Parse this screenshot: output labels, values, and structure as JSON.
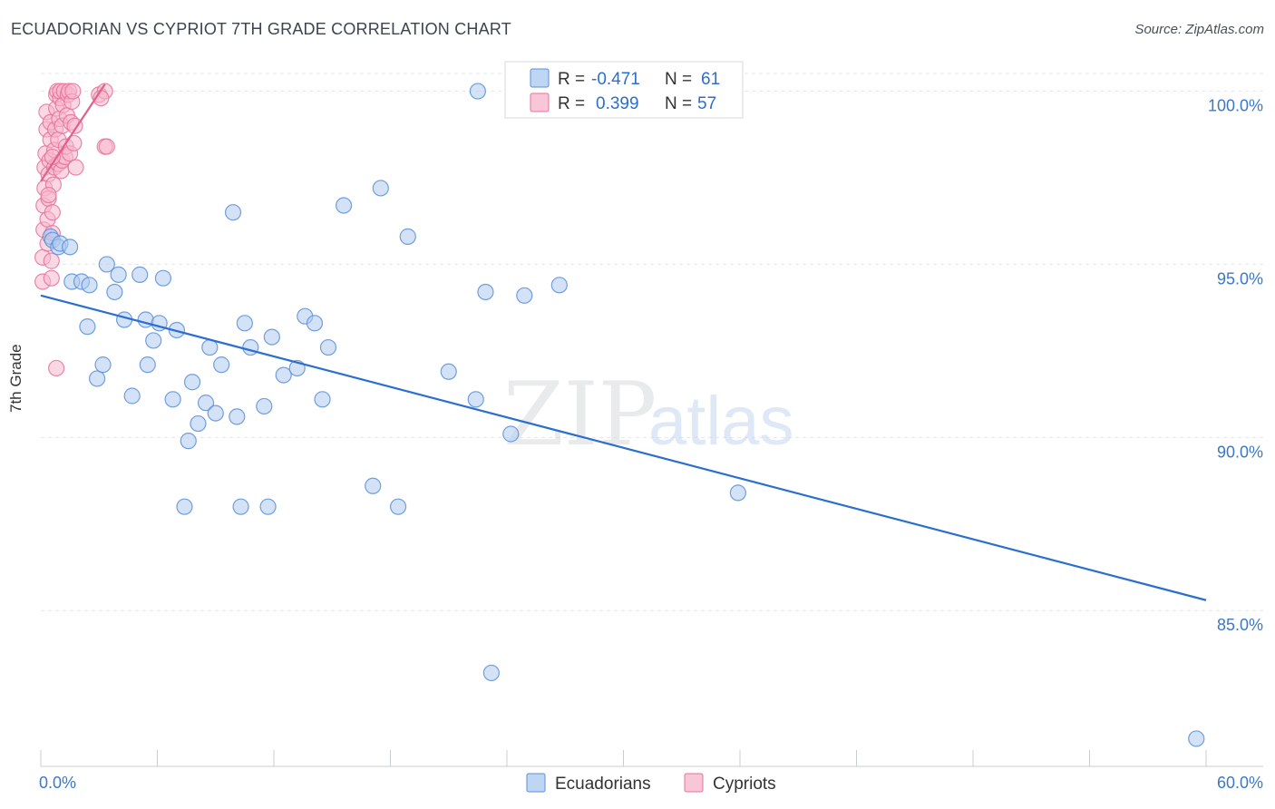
{
  "title": "ECUADORIAN VS CYPRIOT 7TH GRADE CORRELATION CHART",
  "source": "Source: ZipAtlas.com",
  "watermark": {
    "zip": "ZIP",
    "atlas": "atlas"
  },
  "colors": {
    "blue": "#5b8fd8",
    "blue_fill": "#aecbf0",
    "blue_line": "#2a6fcf",
    "pink": "#e8729a",
    "pink_fill": "#f6b8cc",
    "pink_line": "#e0608a",
    "tick_label": "#3b78c8",
    "grid": "#e3e6ea"
  },
  "legend": {
    "items": [
      {
        "r_label": "R =",
        "r_value": "-0.471",
        "n_label": "N =",
        "n_value": "61"
      },
      {
        "r_label": "R =",
        "r_value": "0.399",
        "n_label": "N =",
        "n_value": "57"
      }
    ]
  },
  "chart_data": {
    "type": "scatter",
    "title": "ECUADORIAN VS CYPRIOT 7TH GRADE CORRELATION CHART",
    "xlabel": "",
    "ylabel": "7th Grade",
    "xlim": [
      0,
      60
    ],
    "ylim": [
      80.5,
      100.8
    ],
    "x_tick_labels": [
      "0.0%",
      "60.0%"
    ],
    "y_ticks": [
      85,
      90,
      95,
      100
    ],
    "y_tick_labels": [
      "85.0%",
      "90.0%",
      "95.0%",
      "100.0%"
    ],
    "grid": true,
    "legend_position": "bottom",
    "series": [
      {
        "name": "Ecuadorians",
        "trend": {
          "x": [
            0,
            60
          ],
          "y": [
            94.1,
            85.3
          ]
        },
        "points": [
          [
            0.5,
            95.8
          ],
          [
            0.6,
            95.7
          ],
          [
            0.9,
            95.5
          ],
          [
            1.0,
            95.6
          ],
          [
            1.5,
            95.5
          ],
          [
            1.6,
            94.5
          ],
          [
            2.1,
            94.5
          ],
          [
            2.5,
            94.4
          ],
          [
            2.4,
            93.2
          ],
          [
            2.9,
            91.7
          ],
          [
            3.2,
            92.1
          ],
          [
            3.4,
            95.0
          ],
          [
            3.8,
            94.2
          ],
          [
            4.0,
            94.7
          ],
          [
            4.3,
            93.4
          ],
          [
            4.7,
            91.2
          ],
          [
            5.1,
            94.7
          ],
          [
            5.4,
            93.4
          ],
          [
            5.5,
            92.1
          ],
          [
            5.8,
            92.8
          ],
          [
            6.1,
            93.3
          ],
          [
            6.3,
            94.6
          ],
          [
            6.8,
            91.1
          ],
          [
            7.0,
            93.1
          ],
          [
            7.4,
            88.0
          ],
          [
            7.6,
            89.9
          ],
          [
            7.8,
            91.6
          ],
          [
            8.1,
            90.4
          ],
          [
            8.5,
            91.0
          ],
          [
            8.7,
            92.6
          ],
          [
            9.0,
            90.7
          ],
          [
            9.3,
            92.1
          ],
          [
            9.9,
            96.5
          ],
          [
            10.1,
            90.6
          ],
          [
            10.3,
            88.0
          ],
          [
            10.5,
            93.3
          ],
          [
            10.8,
            92.6
          ],
          [
            11.5,
            90.9
          ],
          [
            11.7,
            88.0
          ],
          [
            11.9,
            92.9
          ],
          [
            12.5,
            91.8
          ],
          [
            13.2,
            92.0
          ],
          [
            13.6,
            93.5
          ],
          [
            14.1,
            93.3
          ],
          [
            14.5,
            91.1
          ],
          [
            14.8,
            92.6
          ],
          [
            15.6,
            96.7
          ],
          [
            17.1,
            88.6
          ],
          [
            17.5,
            97.2
          ],
          [
            18.4,
            88.0
          ],
          [
            18.9,
            95.8
          ],
          [
            21.0,
            91.9
          ],
          [
            22.4,
            91.1
          ],
          [
            22.5,
            100.0
          ],
          [
            22.9,
            94.2
          ],
          [
            23.2,
            83.2
          ],
          [
            24.2,
            90.1
          ],
          [
            24.9,
            94.1
          ],
          [
            26.7,
            94.4
          ],
          [
            35.9,
            88.4
          ],
          [
            59.5,
            81.3
          ]
        ]
      },
      {
        "name": "Cypriots",
        "trend": {
          "x": [
            0,
            3.3
          ],
          "y": [
            97.4,
            100.2
          ]
        },
        "points": [
          [
            0.1,
            94.5
          ],
          [
            0.1,
            95.2
          ],
          [
            0.15,
            96.0
          ],
          [
            0.15,
            96.7
          ],
          [
            0.2,
            97.2
          ],
          [
            0.2,
            97.8
          ],
          [
            0.25,
            98.2
          ],
          [
            0.3,
            98.9
          ],
          [
            0.3,
            99.4
          ],
          [
            0.35,
            95.6
          ],
          [
            0.35,
            96.3
          ],
          [
            0.4,
            96.9
          ],
          [
            0.4,
            97.6
          ],
          [
            0.45,
            98.0
          ],
          [
            0.5,
            98.6
          ],
          [
            0.5,
            99.1
          ],
          [
            0.55,
            94.6
          ],
          [
            0.55,
            95.1
          ],
          [
            0.6,
            95.9
          ],
          [
            0.6,
            96.5
          ],
          [
            0.65,
            97.3
          ],
          [
            0.7,
            97.8
          ],
          [
            0.7,
            98.3
          ],
          [
            0.75,
            98.9
          ],
          [
            0.8,
            99.5
          ],
          [
            0.8,
            99.9
          ],
          [
            0.85,
            100.0
          ],
          [
            0.9,
            97.9
          ],
          [
            0.9,
            98.6
          ],
          [
            0.95,
            99.2
          ],
          [
            1.0,
            99.8
          ],
          [
            1.0,
            100.0
          ],
          [
            1.05,
            97.7
          ],
          [
            1.1,
            98.0
          ],
          [
            1.1,
            99.0
          ],
          [
            1.15,
            99.6
          ],
          [
            1.2,
            100.0
          ],
          [
            1.25,
            98.1
          ],
          [
            1.3,
            98.4
          ],
          [
            1.35,
            99.3
          ],
          [
            1.4,
            99.9
          ],
          [
            1.45,
            100.0
          ],
          [
            1.5,
            98.2
          ],
          [
            1.55,
            99.1
          ],
          [
            1.6,
            99.7
          ],
          [
            1.65,
            100.0
          ],
          [
            1.7,
            98.5
          ],
          [
            1.75,
            99.0
          ],
          [
            1.8,
            97.8
          ],
          [
            0.6,
            98.1
          ],
          [
            0.8,
            92.0
          ],
          [
            0.4,
            97.0
          ],
          [
            3.0,
            99.9
          ],
          [
            3.3,
            100.0
          ],
          [
            3.1,
            99.8
          ],
          [
            3.3,
            98.4
          ],
          [
            3.4,
            98.4
          ]
        ]
      }
    ]
  }
}
